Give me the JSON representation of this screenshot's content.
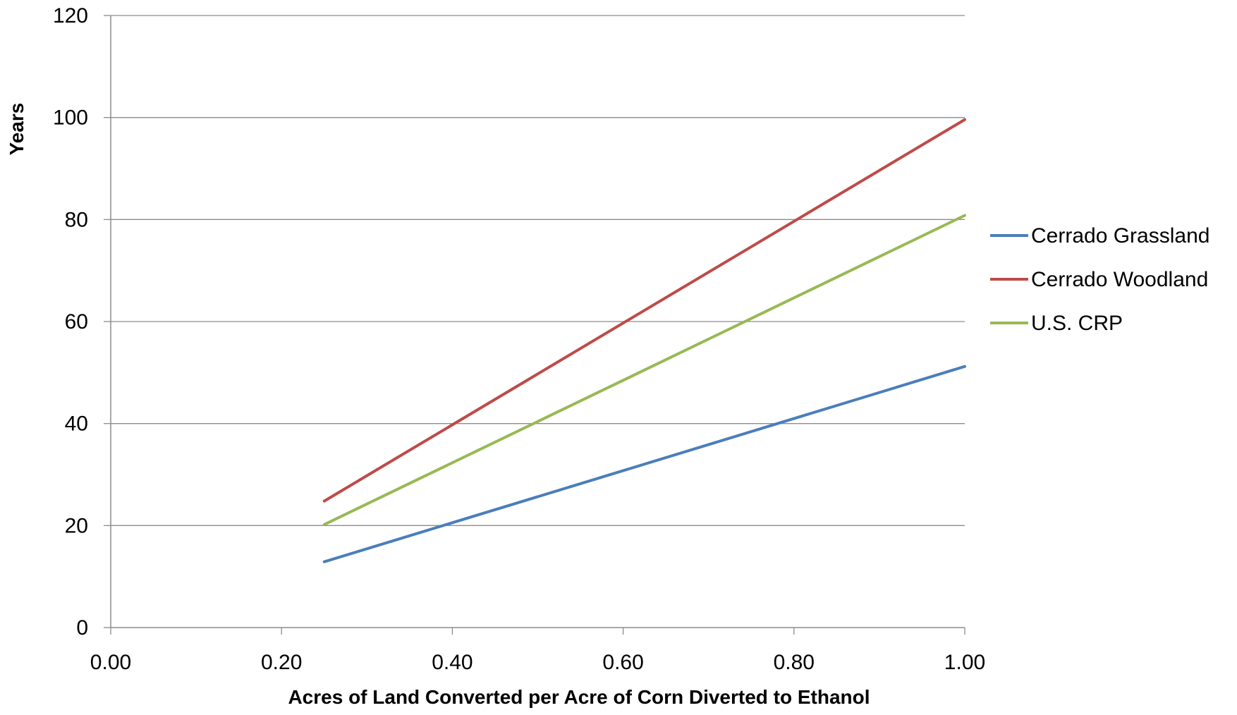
{
  "chart_data": {
    "type": "line",
    "title": "",
    "xlabel": "Acres of Land Converted per Acre of Corn Diverted to Ethanol",
    "ylabel": "Years",
    "xlim": [
      0,
      1
    ],
    "ylim": [
      0,
      120
    ],
    "x_ticks": [
      "0.00",
      "0.20",
      "0.40",
      "0.60",
      "0.80",
      "1.00"
    ],
    "y_ticks": [
      "0",
      "20",
      "40",
      "60",
      "80",
      "100",
      "120"
    ],
    "grid": "horizontal",
    "legend_position": "right",
    "series": [
      {
        "name": "Cerrado Grassland",
        "color": "#4a7ebb",
        "x": [
          0.25,
          1.0
        ],
        "y": [
          12.9,
          51.2
        ]
      },
      {
        "name": "Cerrado Woodland",
        "color": "#be4b48",
        "x": [
          0.25,
          1.0
        ],
        "y": [
          24.8,
          99.6
        ]
      },
      {
        "name": "U.S. CRP",
        "color": "#98b954",
        "x": [
          0.25,
          1.0
        ],
        "y": [
          20.2,
          80.8
        ]
      }
    ]
  }
}
